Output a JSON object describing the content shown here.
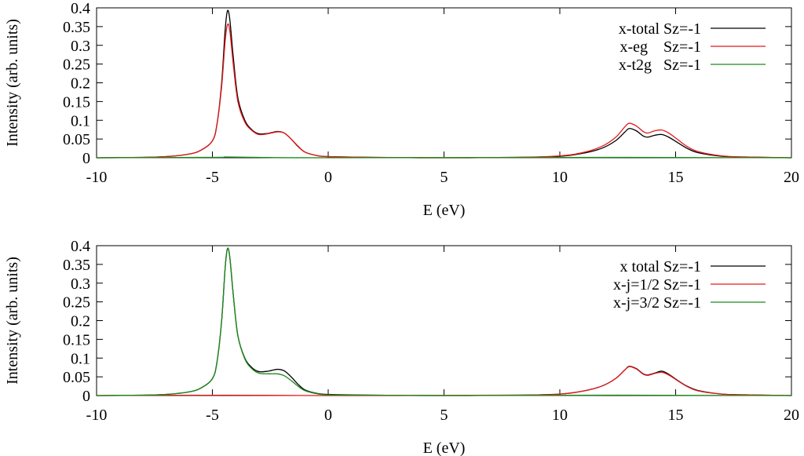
{
  "chart_data": [
    {
      "type": "line",
      "xlabel": "E (eV)",
      "ylabel": "Intensity (arb. units)",
      "xlim": [
        -10,
        20
      ],
      "ylim": [
        0,
        0.4
      ],
      "xticks": [
        "-10",
        "-5",
        "0",
        "5",
        "10",
        "15",
        "20"
      ],
      "yticks": [
        "0",
        "0.05",
        "0.1",
        "0.15",
        "0.2",
        "0.25",
        "0.3",
        "0.35",
        "0.4"
      ],
      "grid": false,
      "legend_position": "top-right",
      "series": [
        {
          "name": "x-total Sz=-1",
          "color": "#000000",
          "points": [
            [
              -10,
              0
            ],
            [
              -8,
              0.001
            ],
            [
              -7,
              0.003
            ],
            [
              -6,
              0.01
            ],
            [
              -5.5,
              0.02
            ],
            [
              -5,
              0.045
            ],
            [
              -4.8,
              0.09
            ],
            [
              -4.6,
              0.2
            ],
            [
              -4.45,
              0.34
            ],
            [
              -4.35,
              0.392
            ],
            [
              -4.25,
              0.37
            ],
            [
              -4.1,
              0.27
            ],
            [
              -3.9,
              0.16
            ],
            [
              -3.6,
              0.1
            ],
            [
              -3.3,
              0.075
            ],
            [
              -3,
              0.064
            ],
            [
              -2.6,
              0.065
            ],
            [
              -2.2,
              0.07
            ],
            [
              -1.9,
              0.066
            ],
            [
              -1.6,
              0.05
            ],
            [
              -1.3,
              0.03
            ],
            [
              -1,
              0.015
            ],
            [
              -0.5,
              0.006
            ],
            [
              0,
              0.003
            ],
            [
              2,
              0.001
            ],
            [
              5,
              0
            ],
            [
              8,
              0.001
            ],
            [
              10,
              0.004
            ],
            [
              11,
              0.012
            ],
            [
              11.8,
              0.025
            ],
            [
              12.4,
              0.045
            ],
            [
              12.8,
              0.068
            ],
            [
              13,
              0.078
            ],
            [
              13.3,
              0.072
            ],
            [
              13.6,
              0.058
            ],
            [
              13.8,
              0.055
            ],
            [
              14.1,
              0.06
            ],
            [
              14.4,
              0.062
            ],
            [
              14.7,
              0.055
            ],
            [
              15.1,
              0.04
            ],
            [
              15.5,
              0.025
            ],
            [
              16,
              0.013
            ],
            [
              17,
              0.004
            ],
            [
              18,
              0.002
            ],
            [
              20,
              0
            ]
          ]
        },
        {
          "name": "x-eg    Sz=-1",
          "color": "#e41a1c",
          "points": [
            [
              -10,
              0
            ],
            [
              -8,
              0.001
            ],
            [
              -7,
              0.003
            ],
            [
              -6,
              0.01
            ],
            [
              -5.5,
              0.02
            ],
            [
              -5,
              0.045
            ],
            [
              -4.8,
              0.09
            ],
            [
              -4.6,
              0.19
            ],
            [
              -4.45,
              0.31
            ],
            [
              -4.35,
              0.355
            ],
            [
              -4.25,
              0.34
            ],
            [
              -4.1,
              0.25
            ],
            [
              -3.9,
              0.15
            ],
            [
              -3.6,
              0.095
            ],
            [
              -3.3,
              0.073
            ],
            [
              -3,
              0.062
            ],
            [
              -2.6,
              0.064
            ],
            [
              -2.2,
              0.069
            ],
            [
              -1.9,
              0.066
            ],
            [
              -1.6,
              0.05
            ],
            [
              -1.3,
              0.031
            ],
            [
              -1,
              0.015
            ],
            [
              -0.5,
              0.006
            ],
            [
              0,
              0.003
            ],
            [
              2,
              0.001
            ],
            [
              5,
              0
            ],
            [
              8,
              0.001
            ],
            [
              10,
              0.005
            ],
            [
              11,
              0.014
            ],
            [
              11.8,
              0.03
            ],
            [
              12.4,
              0.054
            ],
            [
              12.8,
              0.082
            ],
            [
              13,
              0.092
            ],
            [
              13.3,
              0.085
            ],
            [
              13.6,
              0.07
            ],
            [
              13.8,
              0.066
            ],
            [
              14.1,
              0.072
            ],
            [
              14.4,
              0.074
            ],
            [
              14.7,
              0.066
            ],
            [
              15.1,
              0.048
            ],
            [
              15.5,
              0.03
            ],
            [
              16,
              0.016
            ],
            [
              17,
              0.005
            ],
            [
              18,
              0.002
            ],
            [
              20,
              0
            ]
          ]
        },
        {
          "name": "x-t2g   Sz=-1",
          "color": "#1a8a1a",
          "points": [
            [
              -10,
              0
            ],
            [
              -5,
              0.001
            ],
            [
              -4.4,
              0.002
            ],
            [
              -3,
              0.001
            ],
            [
              0,
              0
            ],
            [
              13,
              0.001
            ],
            [
              20,
              0
            ]
          ]
        }
      ]
    },
    {
      "type": "line",
      "xlabel": "E (eV)",
      "ylabel": "Intensity (arb. units)",
      "xlim": [
        -10,
        20
      ],
      "ylim": [
        0,
        0.4
      ],
      "xticks": [
        "-10",
        "-5",
        "0",
        "5",
        "10",
        "15",
        "20"
      ],
      "yticks": [
        "0",
        "0.05",
        "0.1",
        "0.15",
        "0.2",
        "0.25",
        "0.3",
        "0.35",
        "0.4"
      ],
      "grid": false,
      "legend_position": "top-right",
      "series": [
        {
          "name": "x total Sz=-1",
          "color": "#000000",
          "points": [
            [
              -10,
              0
            ],
            [
              -8,
              0.001
            ],
            [
              -7,
              0.003
            ],
            [
              -6,
              0.01
            ],
            [
              -5.5,
              0.02
            ],
            [
              -5,
              0.045
            ],
            [
              -4.8,
              0.09
            ],
            [
              -4.6,
              0.2
            ],
            [
              -4.45,
              0.34
            ],
            [
              -4.35,
              0.392
            ],
            [
              -4.25,
              0.37
            ],
            [
              -4.1,
              0.27
            ],
            [
              -3.9,
              0.16
            ],
            [
              -3.6,
              0.1
            ],
            [
              -3.3,
              0.075
            ],
            [
              -3,
              0.064
            ],
            [
              -2.6,
              0.065
            ],
            [
              -2.2,
              0.07
            ],
            [
              -1.9,
              0.066
            ],
            [
              -1.6,
              0.05
            ],
            [
              -1.3,
              0.03
            ],
            [
              -1,
              0.015
            ],
            [
              -0.5,
              0.006
            ],
            [
              0,
              0.003
            ],
            [
              2,
              0.001
            ],
            [
              5,
              0
            ],
            [
              8,
              0.001
            ],
            [
              10,
              0.004
            ],
            [
              11,
              0.012
            ],
            [
              11.8,
              0.025
            ],
            [
              12.4,
              0.045
            ],
            [
              12.8,
              0.068
            ],
            [
              13,
              0.078
            ],
            [
              13.3,
              0.072
            ],
            [
              13.6,
              0.058
            ],
            [
              13.8,
              0.055
            ],
            [
              14.1,
              0.06
            ],
            [
              14.4,
              0.065
            ],
            [
              14.7,
              0.057
            ],
            [
              15.1,
              0.04
            ],
            [
              15.5,
              0.025
            ],
            [
              16,
              0.013
            ],
            [
              17,
              0.004
            ],
            [
              18,
              0.002
            ],
            [
              20,
              0
            ]
          ]
        },
        {
          "name": "x-j=1/2 Sz=-1",
          "color": "#e41a1c",
          "points": [
            [
              -10,
              0
            ],
            [
              -4.4,
              0.001
            ],
            [
              0,
              0
            ],
            [
              8,
              0.001
            ],
            [
              10,
              0.004
            ],
            [
              11,
              0.012
            ],
            [
              11.8,
              0.025
            ],
            [
              12.4,
              0.045
            ],
            [
              12.8,
              0.068
            ],
            [
              13,
              0.077
            ],
            [
              13.3,
              0.071
            ],
            [
              13.6,
              0.057
            ],
            [
              13.8,
              0.054
            ],
            [
              14.1,
              0.059
            ],
            [
              14.4,
              0.062
            ],
            [
              14.7,
              0.055
            ],
            [
              15.1,
              0.039
            ],
            [
              15.5,
              0.024
            ],
            [
              16,
              0.012
            ],
            [
              17,
              0.004
            ],
            [
              18,
              0.002
            ],
            [
              20,
              0
            ]
          ]
        },
        {
          "name": "x-j=3/2 Sz=-1",
          "color": "#1a8a1a",
          "points": [
            [
              -10,
              0
            ],
            [
              -8,
              0.001
            ],
            [
              -7,
              0.003
            ],
            [
              -6,
              0.01
            ],
            [
              -5.5,
              0.02
            ],
            [
              -5,
              0.045
            ],
            [
              -4.8,
              0.09
            ],
            [
              -4.6,
              0.2
            ],
            [
              -4.45,
              0.34
            ],
            [
              -4.35,
              0.392
            ],
            [
              -4.25,
              0.37
            ],
            [
              -4.1,
              0.27
            ],
            [
              -3.9,
              0.16
            ],
            [
              -3.6,
              0.098
            ],
            [
              -3.3,
              0.072
            ],
            [
              -3,
              0.06
            ],
            [
              -2.6,
              0.058
            ],
            [
              -2.2,
              0.058
            ],
            [
              -1.9,
              0.053
            ],
            [
              -1.6,
              0.04
            ],
            [
              -1.3,
              0.025
            ],
            [
              -1,
              0.013
            ],
            [
              -0.5,
              0.005
            ],
            [
              0,
              0.002
            ],
            [
              2,
              0.001
            ],
            [
              5,
              0
            ],
            [
              12,
              0.001
            ],
            [
              13,
              0.001
            ],
            [
              20,
              0
            ]
          ]
        }
      ]
    }
  ]
}
